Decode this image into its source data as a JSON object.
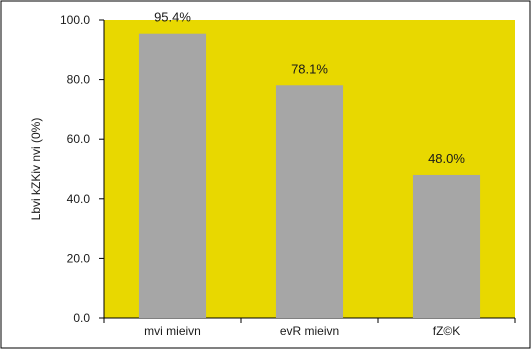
{
  "chart_data": {
    "type": "bar",
    "title": "",
    "xlabel": "",
    "ylabel": "Lbvi kZKiv nvi (0%)",
    "categories": [
      "mvi mieivn",
      "evR mieivn",
      "fZ©K"
    ],
    "values": [
      95.4,
      78.1,
      48.0
    ],
    "data_labels": [
      "95.4%",
      "78.1%",
      "48.0%"
    ],
    "yticks": [
      "0.0",
      "20.0",
      "40.0",
      "60.0",
      "80.0",
      "100.0"
    ],
    "ytick_values": [
      0,
      20,
      40,
      60,
      80,
      100
    ],
    "ylim": [
      0,
      100
    ],
    "grid": false,
    "legend": "none",
    "colors": {
      "plot_background": "#e8d800",
      "bar": "#a6a6a6",
      "frame": "#000000",
      "text": "#1a1a1a"
    }
  }
}
